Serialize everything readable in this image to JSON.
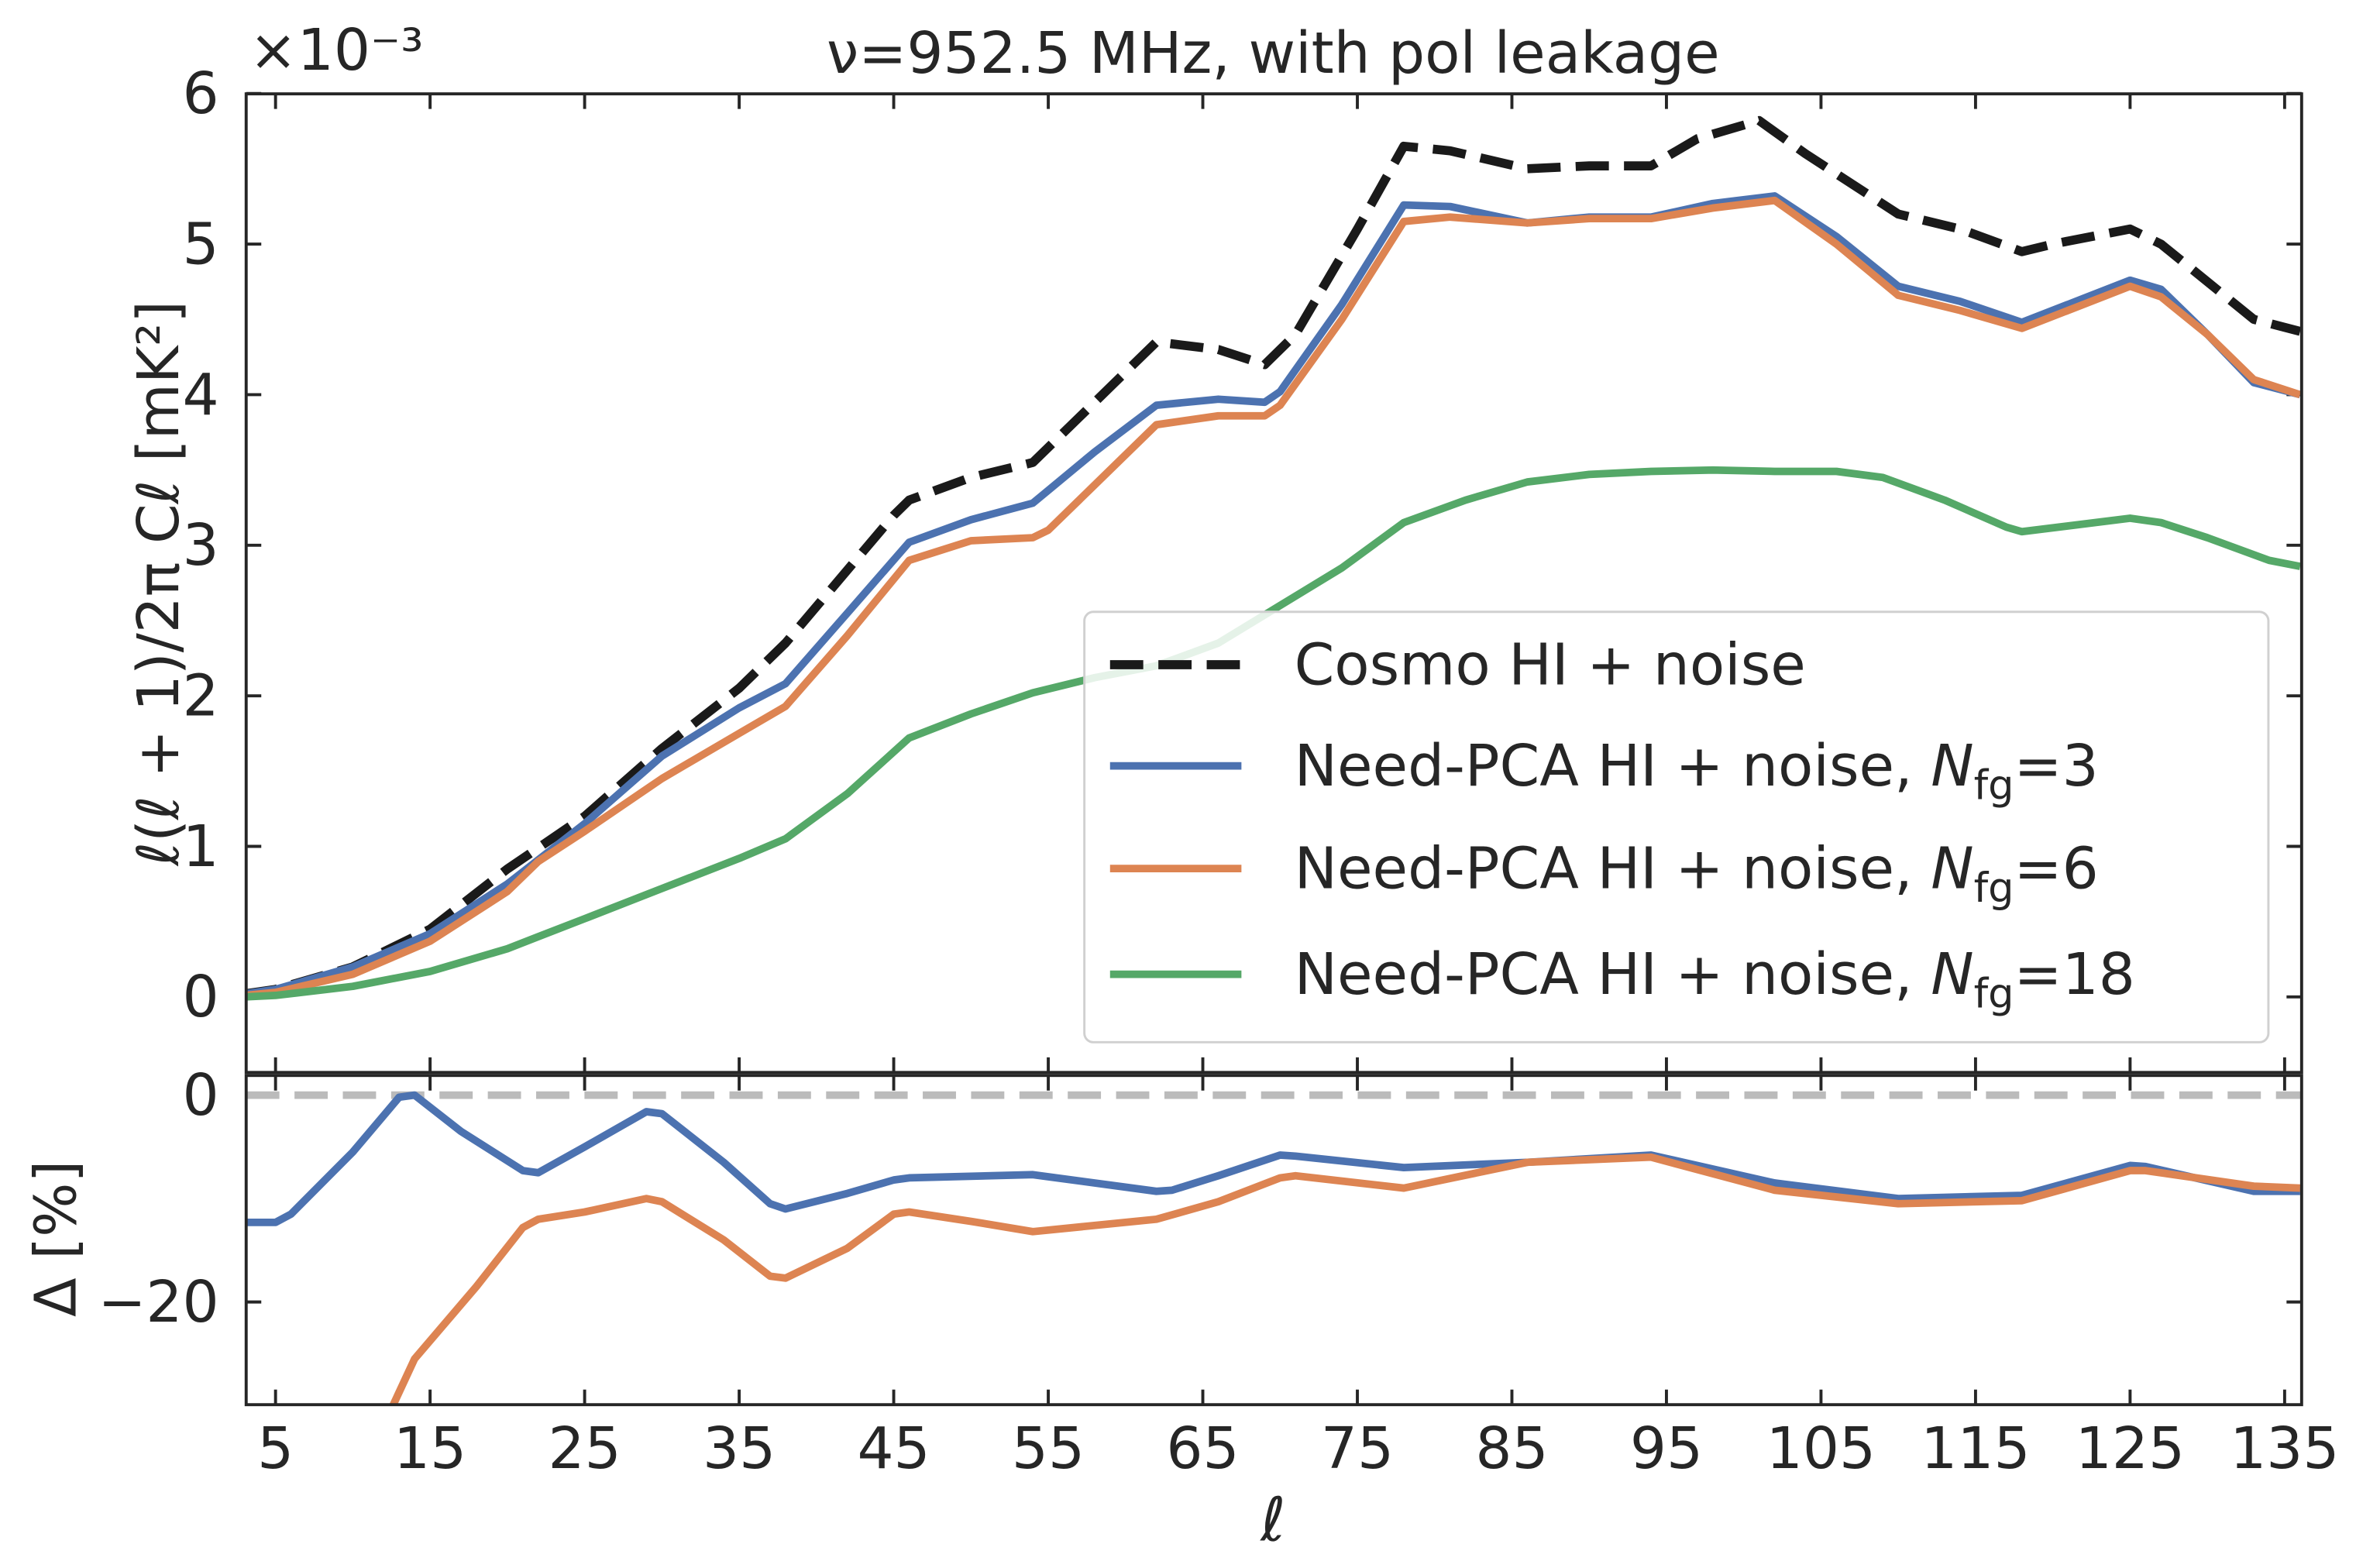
{
  "chart_data": [
    {
      "type": "line",
      "title": "ν=952.5 MHz, with pol leakage",
      "ylabel": "ℓ(ℓ + 1)/2π Cℓ [mK²]",
      "y_offset_label": "×10⁻³",
      "xlim": [
        3.1,
        136.1
      ],
      "ylim": [
        -0.5,
        6
      ],
      "yticks": [
        0,
        1,
        2,
        3,
        4,
        5,
        6
      ],
      "ytick_labels": [
        "0",
        "1",
        "2",
        "3",
        "4",
        "5",
        "6"
      ],
      "legend_position": "lower-right",
      "series": [
        {
          "name": "Cosmo HI + noise",
          "legend_prefix": "Cosmo HI + noise",
          "legend_sym": "",
          "legend_sub": "",
          "legend_suffix": "",
          "color": "#1a1a1a",
          "dashed": true,
          "x": [
            3,
            5,
            10,
            15,
            20,
            25,
            30,
            35,
            38,
            45,
            46,
            50,
            54,
            58,
            62,
            66,
            69,
            71,
            75,
            78,
            81,
            86,
            90,
            94,
            97,
            101,
            104,
            110,
            114,
            118,
            120,
            125,
            127,
            133,
            136
          ],
          "y": [
            0.02,
            0.05,
            0.2,
            0.45,
            0.85,
            1.2,
            1.65,
            2.05,
            2.35,
            3.2,
            3.3,
            3.45,
            3.55,
            3.95,
            4.35,
            4.3,
            4.2,
            4.4,
            5.1,
            5.65,
            5.62,
            5.5,
            5.52,
            5.52,
            5.7,
            5.82,
            5.6,
            5.2,
            5.1,
            4.95,
            5.0,
            5.1,
            5.0,
            4.5,
            4.42
          ]
        },
        {
          "name": "Need-PCA HI + noise, Nfg=3",
          "legend_prefix": "Need-PCA HI + noise, ",
          "legend_sym": "N",
          "legend_sub": "fg",
          "legend_suffix": "=3",
          "color": "#4c72b0",
          "dashed": false,
          "x": [
            3,
            5,
            10,
            15,
            20,
            25,
            30,
            35,
            38,
            42,
            46,
            50,
            54,
            58,
            62,
            66,
            69,
            70,
            74,
            78,
            81,
            86,
            90,
            94,
            98,
            102,
            106,
            110,
            114,
            118,
            125,
            127,
            130,
            133,
            136
          ],
          "y": [
            0.02,
            0.05,
            0.2,
            0.42,
            0.75,
            1.15,
            1.6,
            1.92,
            2.08,
            2.55,
            3.02,
            3.17,
            3.28,
            3.62,
            3.93,
            3.97,
            3.95,
            4.02,
            4.6,
            5.26,
            5.25,
            5.14,
            5.18,
            5.18,
            5.27,
            5.32,
            5.05,
            4.72,
            4.62,
            4.48,
            4.76,
            4.7,
            4.4,
            4.08,
            4.0
          ]
        },
        {
          "name": "Need-PCA HI + noise, Nfg=6",
          "legend_prefix": "Need-PCA HI + noise, ",
          "legend_sym": "N",
          "legend_sub": "fg",
          "legend_suffix": "=6",
          "color": "#dd8452",
          "dashed": false,
          "x": [
            3,
            5,
            10,
            15,
            20,
            22,
            25,
            30,
            35,
            38,
            42,
            46,
            50,
            54,
            55,
            58,
            62,
            66,
            69,
            70,
            74,
            78,
            81,
            86,
            90,
            94,
            98,
            102,
            106,
            110,
            114,
            118,
            125,
            127,
            130,
            133,
            136
          ],
          "y": [
            0.01,
            0.03,
            0.15,
            0.37,
            0.7,
            0.9,
            1.1,
            1.45,
            1.75,
            1.93,
            2.4,
            2.9,
            3.03,
            3.05,
            3.1,
            3.4,
            3.8,
            3.86,
            3.86,
            3.93,
            4.5,
            5.15,
            5.18,
            5.14,
            5.17,
            5.17,
            5.24,
            5.29,
            5.0,
            4.66,
            4.56,
            4.44,
            4.72,
            4.65,
            4.4,
            4.1,
            4.0
          ]
        },
        {
          "name": "Need-PCA HI + noise, Nfg=18",
          "legend_prefix": "Need-PCA HI + noise, ",
          "legend_sym": "N",
          "legend_sub": "fg",
          "legend_suffix": "=18",
          "color": "#55a868",
          "dashed": false,
          "x": [
            3,
            5,
            10,
            15,
            20,
            22,
            25,
            30,
            35,
            38,
            42,
            46,
            50,
            54,
            58,
            62,
            66,
            70,
            74,
            78,
            82,
            86,
            90,
            94,
            98,
            102,
            106,
            109,
            113,
            117,
            118,
            125,
            127,
            130,
            134,
            136
          ],
          "y": [
            0.0,
            0.01,
            0.07,
            0.17,
            0.32,
            0.4,
            0.52,
            0.72,
            0.92,
            1.05,
            1.35,
            1.72,
            1.88,
            2.02,
            2.12,
            2.2,
            2.35,
            2.6,
            2.85,
            3.15,
            3.3,
            3.42,
            3.47,
            3.49,
            3.5,
            3.49,
            3.49,
            3.45,
            3.3,
            3.12,
            3.09,
            3.18,
            3.15,
            3.05,
            2.9,
            2.86
          ]
        }
      ]
    },
    {
      "type": "line",
      "xlabel": "ℓ",
      "ylabel": "Δ [%]",
      "xlim": [
        3.1,
        136.1
      ],
      "ylim": [
        -30,
        1.9
      ],
      "xticks": [
        5,
        15,
        25,
        35,
        45,
        55,
        65,
        75,
        85,
        95,
        105,
        115,
        125,
        135
      ],
      "xtick_labels": [
        "5",
        "15",
        "25",
        "35",
        "45",
        "55",
        "65",
        "75",
        "85",
        "95",
        "105",
        "115",
        "125",
        "135"
      ],
      "yticks": [
        0,
        -20
      ],
      "ytick_labels": [
        "0",
        "−20"
      ],
      "reference_line": {
        "y": 0,
        "color": "#bbbbbb",
        "dashed": true
      },
      "series": [
        {
          "name": "Nfg=3",
          "color": "#4c72b0",
          "x": [
            3,
            5,
            6,
            10,
            13,
            14,
            17,
            21,
            22,
            25,
            29,
            30,
            34,
            37,
            38,
            42,
            45,
            46,
            54,
            62,
            63,
            66,
            70,
            71,
            78,
            86,
            94,
            102,
            110,
            118,
            125,
            126,
            133,
            136
          ],
          "y": [
            -12.3,
            -12.3,
            -11.5,
            -5.5,
            -0.2,
            0,
            -3.5,
            -7.3,
            -7.5,
            -5,
            -1.6,
            -1.8,
            -6.5,
            -10.5,
            -11,
            -9.5,
            -8.2,
            -8,
            -7.7,
            -9.3,
            -9.2,
            -7.8,
            -5.8,
            -5.9,
            -7,
            -6.5,
            -5.8,
            -8.5,
            -10,
            -9.7,
            -6.8,
            -6.9,
            -9.3,
            -9.3
          ]
        },
        {
          "name": "Nfg=6",
          "color": "#dd8452",
          "x": [
            11.5,
            12.6,
            14,
            18,
            21,
            22,
            25,
            29,
            30,
            34,
            37,
            38,
            42,
            45,
            46,
            50,
            54,
            62,
            66,
            70,
            71,
            78,
            86,
            94,
            102,
            110,
            118,
            125,
            126,
            133,
            136
          ],
          "y": [
            -34,
            -30,
            -25.5,
            -18.5,
            -12.8,
            -12,
            -11.3,
            -10,
            -10.3,
            -14,
            -17.5,
            -17.7,
            -14.8,
            -11.5,
            -11.3,
            -12.2,
            -13.2,
            -12,
            -10.3,
            -8,
            -7.8,
            -9,
            -6.5,
            -6,
            -9.2,
            -10.5,
            -10.2,
            -7.3,
            -7.3,
            -8.8,
            -9
          ]
        }
      ]
    }
  ]
}
